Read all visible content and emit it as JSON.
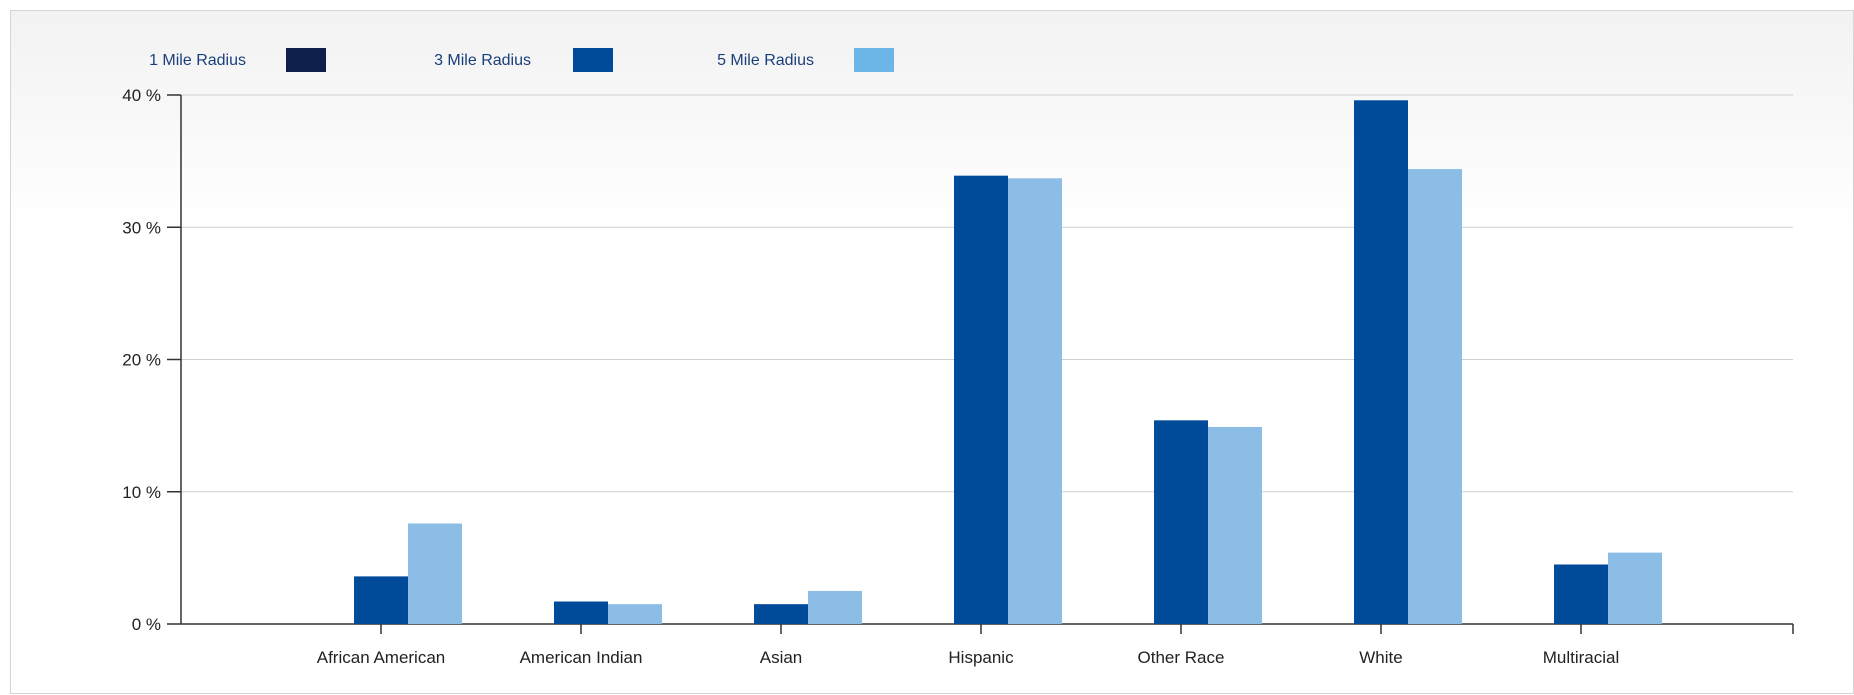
{
  "chart_data": {
    "type": "bar",
    "title": "",
    "xlabel": "",
    "ylabel": "",
    "ylim": [
      0,
      40
    ],
    "yticks": [
      0,
      10,
      20,
      30,
      40
    ],
    "ytick_labels": [
      "0 %",
      "10 %",
      "20 %",
      "30 %",
      "40 %"
    ],
    "grid": true,
    "legend_position": "top-left",
    "categories": [
      "African American",
      "American Indian",
      "Asian",
      "Hispanic",
      "Other Race",
      "White",
      "Multiracial"
    ],
    "series": [
      {
        "name": "1 Mile Radius",
        "color": "#0d1f4a",
        "values": [
          0,
          0,
          0,
          0,
          0,
          0,
          0
        ]
      },
      {
        "name": "3 Mile Radius",
        "color": "#004a9a",
        "values": [
          3.6,
          1.7,
          1.5,
          33.9,
          15.4,
          39.6,
          4.5
        ]
      },
      {
        "name": "5 Mile Radius",
        "color": "#8cbde6",
        "values": [
          7.6,
          1.5,
          2.5,
          33.7,
          14.9,
          34.4,
          5.4
        ]
      }
    ],
    "legend_swatch_colors": [
      "#0d1f4a",
      "#004a9a",
      "#6bb6e6"
    ]
  }
}
